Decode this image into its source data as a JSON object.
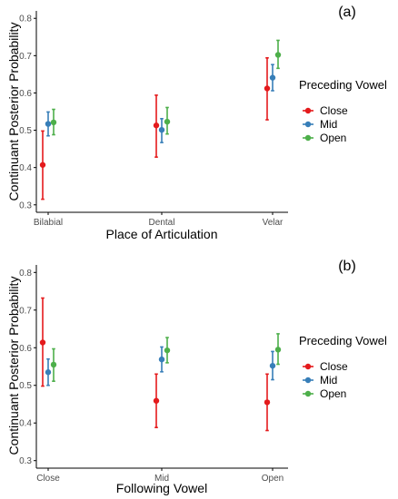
{
  "chart_data": [
    {
      "type": "scatter",
      "panel_label": "(a)",
      "xlabel": "Place of Articulation",
      "ylabel": "Continuant Posterior Probability",
      "categories": [
        "Bilabial",
        "Dental",
        "Velar"
      ],
      "ylim": [
        0.28,
        0.82
      ],
      "yticks": [
        "0.3",
        "0.4",
        "0.5",
        "0.6",
        "0.7",
        "0.8"
      ],
      "grid": false,
      "legend_position": "right",
      "series": [
        {
          "name": "Close",
          "color": "#e41a1c",
          "values": [
            0.407,
            0.513,
            0.612
          ],
          "lower": [
            0.315,
            0.428,
            0.528
          ],
          "upper": [
            0.498,
            0.594,
            0.694
          ]
        },
        {
          "name": "Mid",
          "color": "#377eb8",
          "values": [
            0.517,
            0.501,
            0.641
          ],
          "lower": [
            0.485,
            0.467,
            0.606
          ],
          "upper": [
            0.549,
            0.531,
            0.676
          ]
        },
        {
          "name": "Open",
          "color": "#4daf4a",
          "values": [
            0.521,
            0.523,
            0.702
          ],
          "lower": [
            0.488,
            0.49,
            0.666
          ],
          "upper": [
            0.556,
            0.561,
            0.741
          ]
        }
      ]
    },
    {
      "type": "scatter",
      "panel_label": "(b)",
      "xlabel": "Following Vowel",
      "ylabel": "Continuant Posterior Probability",
      "categories": [
        "Close",
        "Mid",
        "Open"
      ],
      "ylim": [
        0.28,
        0.82
      ],
      "yticks": [
        "0.3",
        "0.4",
        "0.5",
        "0.6",
        "0.7",
        "0.8"
      ],
      "grid": false,
      "legend_position": "right",
      "series": [
        {
          "name": "Close",
          "color": "#e41a1c",
          "values": [
            0.614,
            0.459,
            0.455
          ],
          "lower": [
            0.498,
            0.388,
            0.38
          ],
          "upper": [
            0.732,
            0.53,
            0.53
          ]
        },
        {
          "name": "Mid",
          "color": "#377eb8",
          "values": [
            0.535,
            0.569,
            0.552
          ],
          "lower": [
            0.5,
            0.536,
            0.515
          ],
          "upper": [
            0.57,
            0.602,
            0.59
          ]
        },
        {
          "name": "Open",
          "color": "#4daf4a",
          "values": [
            0.555,
            0.593,
            0.595
          ],
          "lower": [
            0.511,
            0.56,
            0.556
          ],
          "upper": [
            0.597,
            0.627,
            0.637
          ]
        }
      ]
    }
  ],
  "legend": {
    "title": "Preceding Vowel",
    "items": [
      "Close",
      "Mid",
      "Open"
    ]
  }
}
